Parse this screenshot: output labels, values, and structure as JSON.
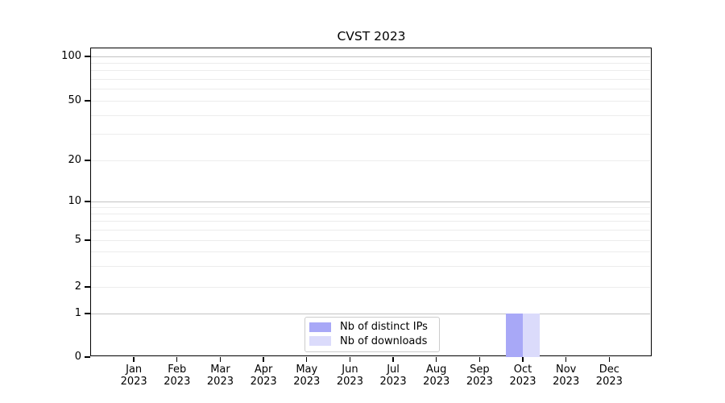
{
  "title": "CVST 2023",
  "chart_data": {
    "type": "bar",
    "title": "CVST 2023",
    "categories": [
      "Jan",
      "Feb",
      "Mar",
      "Apr",
      "May",
      "Jun",
      "Jul",
      "Aug",
      "Sep",
      "Oct",
      "Nov",
      "Dec"
    ],
    "category_year": "2023",
    "series": [
      {
        "name": "Nb of distinct IPs",
        "color": "#a8a8f7",
        "values": [
          0,
          0,
          0,
          0,
          0,
          0,
          0,
          0,
          0,
          1,
          0,
          0
        ]
      },
      {
        "name": "Nb of downloads",
        "color": "#dbdbfb",
        "values": [
          0,
          0,
          0,
          0,
          0,
          0,
          0,
          0,
          0,
          1,
          0,
          0
        ]
      }
    ],
    "y_axis": {
      "scale": "symlog",
      "tick_values": [
        0,
        1,
        2,
        5,
        10,
        20,
        50,
        100
      ],
      "tick_labels": [
        "0",
        "1",
        "2",
        "5",
        "10",
        "20",
        "50",
        "100"
      ],
      "major_gridline_values": [
        1,
        10,
        100
      ],
      "minor_gridline_values": [
        2,
        3,
        4,
        5,
        6,
        7,
        8,
        9,
        20,
        30,
        40,
        50,
        60,
        70,
        80,
        90
      ],
      "range": [
        0,
        120
      ]
    },
    "x_axis": {
      "tick_label_format": "Month over Year"
    },
    "legend": {
      "position": "lower center"
    },
    "grid": true,
    "colors": {
      "major_gridline": "#c3c3c3",
      "minor_gridline": "#ececec",
      "spine": "#000000",
      "text": "#000000",
      "background": "#ffffff"
    }
  }
}
